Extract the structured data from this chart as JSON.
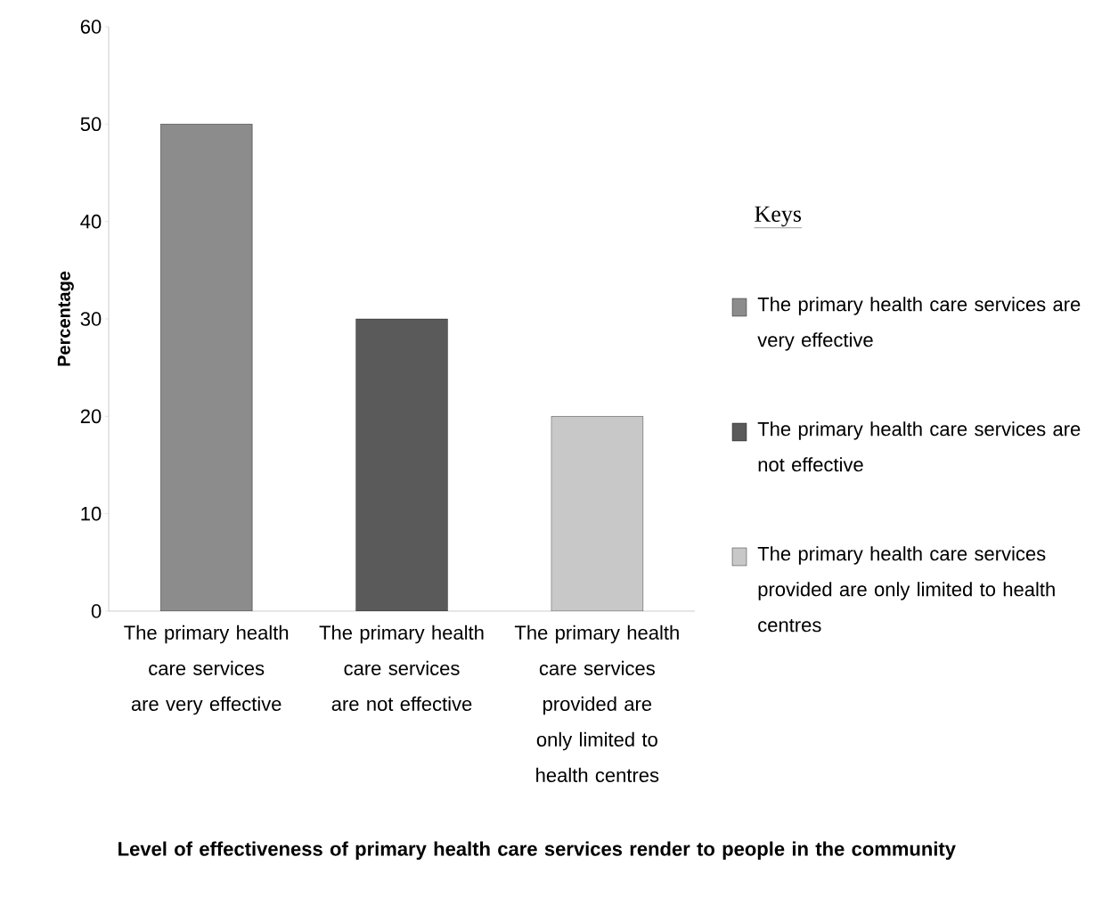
{
  "chart_data": {
    "type": "bar",
    "categories": [
      "The primary health care services are very effective",
      "The primary health care services are not effective",
      "The primary health care services provided are only limited to health centres"
    ],
    "series": [
      {
        "name": "The primary health care services are very effective",
        "color": "#8c8c8c",
        "values": [
          50,
          null,
          null
        ]
      },
      {
        "name": "The primary health care services are not effective",
        "color": "#5a5a5a",
        "values": [
          null,
          30,
          null
        ]
      },
      {
        "name": "The primary health care services provided are only limited to health centres",
        "color": "#c8c8c8",
        "values": [
          null,
          null,
          20
        ]
      }
    ],
    "ylim": [
      0,
      60
    ],
    "yticks": [
      0,
      10,
      20,
      30,
      40,
      50,
      60
    ],
    "ylabel": "Percentage",
    "xlabel": "Level  of effectiveness of primary health care services render to people in the community",
    "legend_title": "Keys",
    "legend": "right"
  }
}
